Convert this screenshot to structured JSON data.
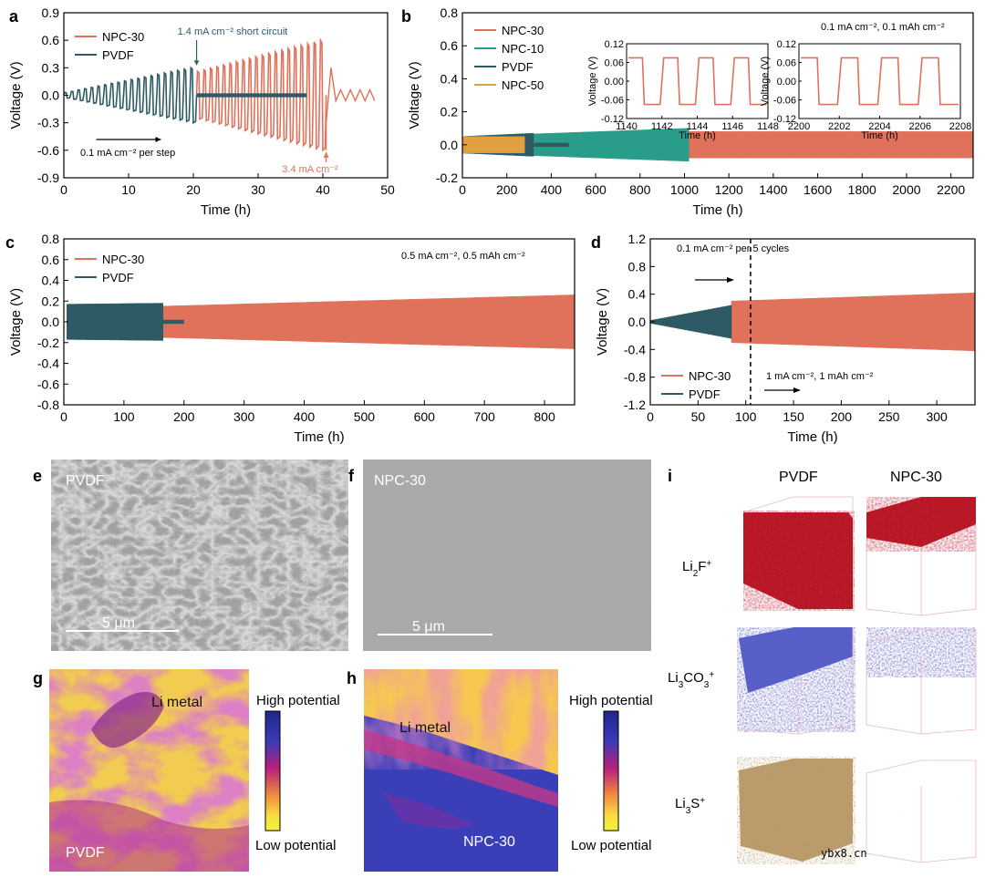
{
  "colors": {
    "npc30": "#e0715a",
    "npc10": "#2a9d8a",
    "pvdf": "#2d5a64",
    "npc50": "#e0a040",
    "tof_red": "#b5141e",
    "tof_blue": "#2e39b0",
    "tof_gold": "#a77a3a"
  },
  "chart_data": [
    {
      "id": "a",
      "type": "line",
      "letter": "a",
      "xlabel": "Time (h)",
      "ylabel": "Voltage (V)",
      "xlim": [
        0,
        50
      ],
      "ylim": [
        -0.9,
        0.9
      ],
      "xticks": [
        0,
        10,
        20,
        30,
        40,
        50
      ],
      "yticks": [
        -0.9,
        -0.6,
        -0.3,
        0.0,
        0.3,
        0.6,
        0.9
      ],
      "ytick_labels": [
        "-0.9",
        "-0.6",
        "-0.3",
        "0.0",
        "0.3",
        "0.6",
        "0.9"
      ],
      "series": [
        {
          "name": "NPC-30",
          "color_key": "npc30",
          "segments": [
            [
              20.5,
              40.5
            ]
          ],
          "amp_start": 0.26,
          "amp_end": 0.6,
          "failure_after": [
            40.5,
            48
          ]
        },
        {
          "name": "PVDF",
          "color_key": "pvdf",
          "segments": [
            [
              0,
              20.5
            ]
          ],
          "amp_start": 0.03,
          "amp_end": 0.3,
          "flat_after": [
            20.5,
            37.5
          ]
        }
      ],
      "legend_position": "top-left",
      "annotations": [
        {
          "text": "1.4 mA cm⁻² short circuit",
          "x": 20.5,
          "y": 0.33
        },
        {
          "text": "0.1 mA cm⁻² per step",
          "x": 5,
          "y": -0.6
        },
        {
          "text": "3.4 mA cm⁻²",
          "x": 40.5,
          "y": -0.62
        }
      ]
    },
    {
      "id": "b",
      "type": "line",
      "letter": "b",
      "xlabel": "Time (h)",
      "ylabel": "Voltage (V)",
      "xlim": [
        0,
        2300
      ],
      "ylim": [
        -0.2,
        0.8
      ],
      "xticks": [
        0,
        200,
        400,
        600,
        800,
        1000,
        1200,
        1400,
        1600,
        1800,
        2000,
        2200
      ],
      "yticks": [
        -0.2,
        0.0,
        0.2,
        0.4,
        0.6,
        0.8
      ],
      "ytick_labels": [
        "-0.2",
        "0.0",
        "0.2",
        "0.4",
        "0.6",
        "0.8"
      ],
      "series": [
        {
          "name": "NPC-30",
          "color_key": "npc30",
          "segments": [
            [
              1020,
              2300
            ]
          ],
          "amp_start": 0.08,
          "amp_end": 0.08
        },
        {
          "name": "NPC-10",
          "color_key": "npc10",
          "segments": [
            [
              0,
              1020
            ]
          ],
          "amp_start": 0.05,
          "amp_end": 0.1
        },
        {
          "name": "PVDF",
          "color_key": "pvdf",
          "segments": [
            [
              0,
              320
            ]
          ],
          "amp_start": 0.05,
          "amp_end": 0.07,
          "flat_after": [
            320,
            480
          ]
        },
        {
          "name": "NPC-50",
          "color_key": "npc50",
          "segments": [
            [
              0,
              280
            ]
          ],
          "amp_start": 0.05,
          "amp_end": 0.05
        }
      ],
      "legend_position": "top-left",
      "annotations": [
        {
          "text": "0.1 mA cm⁻², 0.1 mAh cm⁻²"
        }
      ],
      "insets": [
        {
          "xlabel": "Time (h)",
          "ylabel": "Voltage (V)",
          "xlim": [
            1140,
            1148
          ],
          "ylim": [
            -0.12,
            0.12
          ],
          "xticks": [
            1140,
            1142,
            1144,
            1146,
            1148
          ],
          "yticks": [
            -0.12,
            -0.06,
            0.0,
            0.06,
            0.12
          ],
          "ytick_labels": [
            "-0.12",
            "-0.06",
            "0.00",
            "0.06",
            "0.12"
          ],
          "plateau": 0.075,
          "period_h": 2
        },
        {
          "xlabel": "Time (h)",
          "ylabel": "Voltage (V)",
          "xlim": [
            2200,
            2208
          ],
          "ylim": [
            -0.12,
            0.12
          ],
          "xticks": [
            2200,
            2202,
            2204,
            2206,
            2208
          ],
          "yticks": [
            -0.12,
            -0.06,
            0.0,
            0.06,
            0.12
          ],
          "ytick_labels": [
            "-0.12",
            "-0.06",
            "0.00",
            "0.06",
            "0.12"
          ],
          "plateau": 0.075,
          "period_h": 2
        }
      ]
    },
    {
      "id": "c",
      "type": "line",
      "letter": "c",
      "xlabel": "Time (h)",
      "ylabel": "Voltage (V)",
      "xlim": [
        0,
        850
      ],
      "ylim": [
        -0.8,
        0.8
      ],
      "xticks": [
        0,
        100,
        200,
        300,
        400,
        500,
        600,
        700,
        800
      ],
      "yticks": [
        -0.8,
        -0.6,
        -0.4,
        -0.2,
        0.0,
        0.2,
        0.4,
        0.6,
        0.8
      ],
      "ytick_labels": [
        "-0.8",
        "-0.6",
        "-0.4",
        "-0.2",
        "0.0",
        "0.2",
        "0.4",
        "0.6",
        "0.8"
      ],
      "series": [
        {
          "name": "NPC-30",
          "color_key": "npc30",
          "segments": [
            [
              160,
              850
            ]
          ],
          "amp_start": 0.15,
          "amp_end": 0.26
        },
        {
          "name": "PVDF",
          "color_key": "pvdf",
          "segments": [
            [
              5,
              165
            ]
          ],
          "amp_start": 0.17,
          "amp_end": 0.18,
          "flat_after": [
            165,
            200
          ]
        }
      ],
      "legend_position": "top-left",
      "annotations": [
        {
          "text": "0.5 mA cm⁻², 0.5 mAh cm⁻²"
        }
      ]
    },
    {
      "id": "d",
      "type": "line",
      "letter": "d",
      "xlabel": "Time (h)",
      "ylabel": "Voltage (V)",
      "xlim": [
        0,
        340
      ],
      "ylim": [
        -1.2,
        1.2
      ],
      "xticks": [
        0,
        50,
        100,
        150,
        200,
        250,
        300
      ],
      "yticks": [
        -1.2,
        -0.8,
        -0.4,
        0.0,
        0.4,
        0.8,
        1.2
      ],
      "ytick_labels": [
        "-1.2",
        "-0.8",
        "-0.4",
        "0.0",
        "0.4",
        "0.8",
        "1.2"
      ],
      "series": [
        {
          "name": "NPC-30",
          "color_key": "npc30",
          "segments": [
            [
              85,
              340
            ]
          ],
          "amp_start": 0.3,
          "amp_end": 0.42
        },
        {
          "name": "PVDF",
          "color_key": "pvdf",
          "segments": [
            [
              0,
              85
            ]
          ],
          "amp_start": 0.02,
          "amp_end": 0.24
        }
      ],
      "divider_x": 105,
      "legend_position": "bottom-left",
      "annotations": [
        {
          "text": "0.1 mA cm⁻² per 5 cycles"
        },
        {
          "text": "1 mA cm⁻², 1 mAh cm⁻²"
        }
      ]
    }
  ],
  "sem": [
    {
      "letter": "e",
      "label": "PVDF",
      "scalebar": "5 μm"
    },
    {
      "letter": "f",
      "label": "NPC-30",
      "scalebar": "5 μm"
    }
  ],
  "kpfm": [
    {
      "letter": "g",
      "label_metal": "Li metal",
      "label_sample": "PVDF"
    },
    {
      "letter": "h",
      "label_metal": "Li metal",
      "label_sample": "NPC-30"
    }
  ],
  "colorbar": {
    "high": "High potential",
    "low": "Low potential"
  },
  "tof": {
    "letter": "i",
    "columns": [
      "PVDF",
      "NPC-30"
    ],
    "rows": [
      {
        "base": "Li",
        "sub": "2",
        "rest": "F",
        "sup": "+",
        "color_key": "tof_red"
      },
      {
        "base": "Li",
        "sub": "3",
        "rest": "CO",
        "sub2": "3",
        "sup": "+",
        "color_key": "tof_blue"
      },
      {
        "base": "Li",
        "sub": "3",
        "rest": "S",
        "sup": "+",
        "color_key": "tof_gold"
      }
    ]
  },
  "watermark": "ybx8.cn"
}
